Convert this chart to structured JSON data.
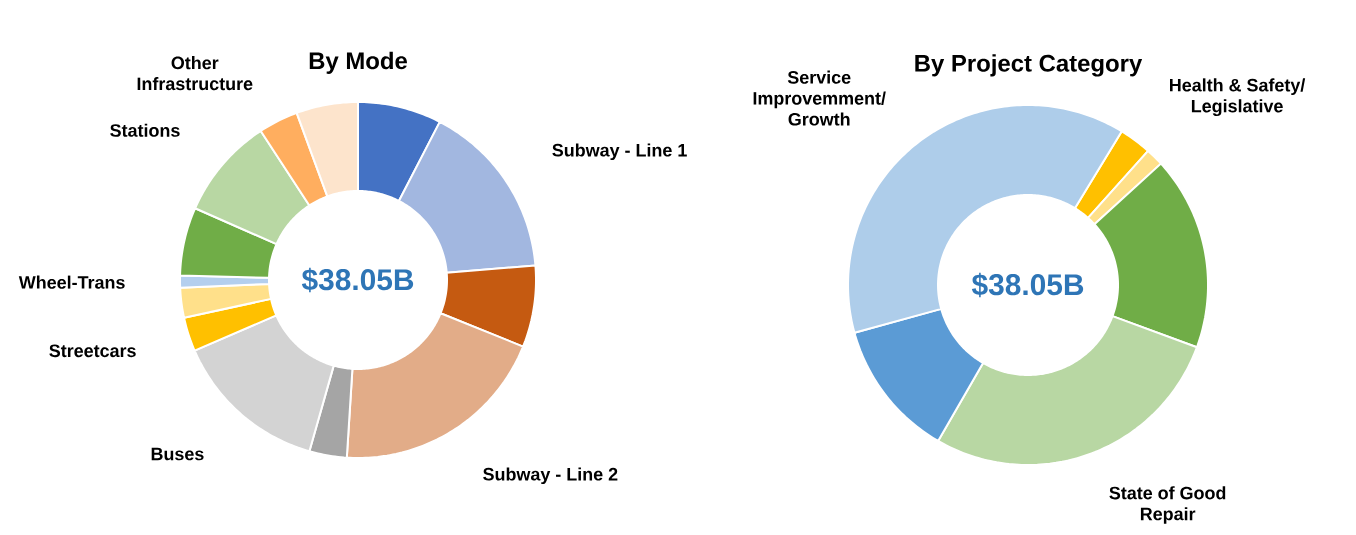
{
  "chart_data": [
    {
      "type": "donut",
      "title": "By Mode",
      "categories": [
        null,
        "Subway - Line 1",
        null,
        "Subway - Line 2",
        null,
        "Buses",
        "Streetcars",
        null,
        "Wheel-Trans",
        null,
        "Stations",
        "Other Infrastructure",
        null
      ],
      "values": [
        7.6,
        16.1,
        7.4,
        19.9,
        3.4,
        14.1,
        3.1,
        2.7,
        1.1,
        6.2,
        9.2,
        3.6,
        5.6
      ],
      "colors": [
        "#4472c4",
        "#a2b7e0",
        "#c55a11",
        "#e2ac88",
        "#a5a5a5",
        "#d3d3d3",
        "#ffc000",
        "#ffe08a",
        "#b4cfee",
        "#70ad47",
        "#b8d7a3",
        "#ffae5f",
        "#fde4cc"
      ],
      "annotations": [
        "$38.05B"
      ]
    },
    {
      "type": "donut",
      "title": "By Project Category",
      "categories": [
        "Health & Safety/ Legislative",
        null,
        null,
        "State of Good Repair",
        null,
        "Service Improvemment/ Growth"
      ],
      "values": [
        2.9,
        1.6,
        17.4,
        27.7,
        12.4,
        38.0
      ],
      "colors": [
        "#ffc000",
        "#ffe08a",
        "#70ad47",
        "#b8d7a3",
        "#5b9bd5",
        "#aecdea"
      ],
      "annotations": [
        "$38.05B"
      ]
    }
  ]
}
